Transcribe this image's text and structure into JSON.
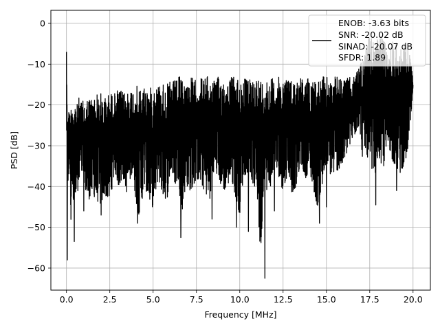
{
  "chart_data": {
    "type": "line",
    "title": "",
    "xlabel": "Frequency [MHz]",
    "ylabel": "PSD [dB]",
    "xlim": [
      -0.9,
      21.0
    ],
    "ylim": [
      -65.4,
      3.2
    ],
    "xticks": [
      0.0,
      2.5,
      5.0,
      7.5,
      10.0,
      12.5,
      15.0,
      17.5,
      20.0
    ],
    "xtick_labels": [
      "0.0",
      "2.5",
      "5.0",
      "7.5",
      "10.0",
      "12.5",
      "15.0",
      "17.5",
      "20.0"
    ],
    "yticks": [
      0,
      -10,
      -20,
      -30,
      -40,
      -50,
      -60
    ],
    "ytick_labels": [
      "0",
      "−10",
      "−20",
      "−30",
      "−40",
      "−50",
      "−60"
    ],
    "grid": true,
    "legend_position": "top-right",
    "legend_lines": [
      "ENOB: -3.63 bits",
      "SNR: -20.02 dB",
      "SINAD: -20.07 dB",
      "SFDR: 1.89"
    ],
    "series_color": "#000000",
    "series": [
      {
        "x": [
          0.0,
          0.05,
          0.1,
          0.15,
          0.2,
          0.25,
          0.3,
          0.4,
          0.5,
          0.6,
          0.7,
          0.8,
          1.0,
          1.2,
          1.5,
          1.8,
          2.0,
          2.2,
          2.5,
          2.8,
          3.0,
          3.3,
          3.5,
          3.8,
          4.0,
          4.2,
          4.5,
          4.8,
          5.0,
          5.3,
          5.5,
          5.8,
          6.0,
          6.3,
          6.5,
          6.6,
          6.8,
          7.0,
          7.2,
          7.5,
          7.8,
          8.0,
          8.3,
          8.5,
          8.8,
          9.0,
          9.3,
          9.5,
          9.8,
          10.0,
          10.2,
          10.5,
          10.8,
          11.0,
          11.2,
          11.4,
          11.6,
          11.8,
          12.0,
          12.3,
          12.5,
          12.8,
          13.0,
          13.3,
          13.5,
          13.8,
          14.0,
          14.3,
          14.5,
          14.8,
          15.0,
          15.3,
          15.5,
          15.8,
          16.0,
          16.3,
          16.5,
          16.7,
          16.9,
          17.1,
          17.3,
          17.5,
          17.7,
          17.8,
          18.0,
          18.2,
          18.4,
          18.6,
          18.8,
          19.0,
          19.2,
          19.4,
          19.6,
          19.8,
          20.0
        ],
        "upper": [
          -7,
          -14,
          -18,
          -22,
          -21,
          -20,
          -19,
          -18,
          -19,
          -20,
          -18,
          -19,
          -19,
          -18,
          -18,
          -17,
          -17,
          -18,
          -17,
          -17,
          -16,
          -17,
          -16,
          -16,
          -15,
          -16,
          -15,
          -16,
          -15,
          -15,
          -14,
          -15,
          -14,
          -14,
          -13,
          -13,
          -14,
          -14,
          -13,
          -14,
          -13,
          -13,
          -13,
          -14,
          -13,
          -13,
          -14,
          -13,
          -13,
          -13,
          -13,
          -14,
          -13,
          -13,
          -13,
          -14,
          -13,
          -13,
          -14,
          -13,
          -13,
          -13,
          -14,
          -13,
          -13,
          -14,
          -13,
          -13,
          -14,
          -13,
          -13,
          -14,
          -13,
          -13,
          -14,
          -13,
          -14,
          -12,
          -10,
          -8,
          -6,
          -2,
          -4,
          -6,
          -3,
          -2,
          -5,
          -7,
          -4,
          -3,
          -5,
          -6,
          -4,
          -6,
          -14
        ],
        "lower": [
          -24,
          -58,
          -40,
          -36,
          -38,
          -54,
          -40,
          -46,
          -43,
          -44,
          -46,
          -38,
          -40,
          -46,
          -44,
          -46,
          -47,
          -44,
          -46,
          -38,
          -42,
          -40,
          -44,
          -38,
          -46,
          -50,
          -42,
          -46,
          -48,
          -40,
          -44,
          -46,
          -38,
          -42,
          -40,
          -52,
          -44,
          -42,
          -44,
          -40,
          -42,
          -44,
          -46,
          -38,
          -40,
          -44,
          -42,
          -40,
          -46,
          -50,
          -40,
          -38,
          -42,
          -44,
          -62,
          -40,
          -44,
          -42,
          -38,
          -40,
          -44,
          -38,
          -44,
          -42,
          -36,
          -40,
          -38,
          -44,
          -48,
          -42,
          -36,
          -40,
          -38,
          -38,
          -36,
          -32,
          -30,
          -28,
          -26,
          -36,
          -32,
          -44,
          -38,
          -40,
          -34,
          -40,
          -36,
          -32,
          -36,
          -38,
          -40,
          -38,
          -36,
          -30,
          -18
        ],
        "dips": [
          [
            0.05,
            -58
          ],
          [
            0.45,
            -53.5
          ],
          [
            1.0,
            -46
          ],
          [
            2.0,
            -47
          ],
          [
            4.1,
            -49
          ],
          [
            6.6,
            -52.5
          ],
          [
            8.4,
            -48
          ],
          [
            9.8,
            -50
          ],
          [
            10.5,
            -51
          ],
          [
            11.45,
            -62.5
          ],
          [
            12.0,
            -46
          ],
          [
            14.6,
            -49
          ],
          [
            15.0,
            -45
          ],
          [
            17.85,
            -44.5
          ],
          [
            19.05,
            -41
          ]
        ]
      }
    ]
  }
}
